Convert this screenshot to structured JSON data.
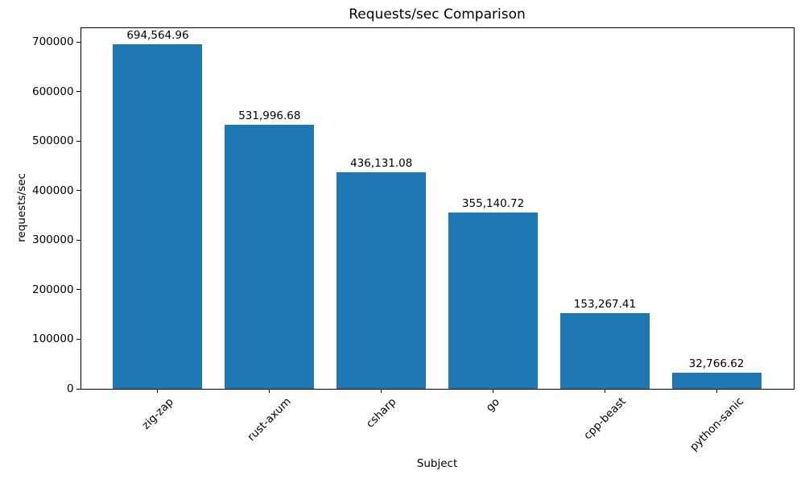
{
  "chart_data": {
    "type": "bar",
    "title": "Requests/sec Comparison",
    "xlabel": "Subject",
    "ylabel": "requests/sec",
    "categories": [
      "zig-zap",
      "rust-axum",
      "csharp",
      "go",
      "cpp-beast",
      "python-sanic"
    ],
    "values": [
      694564.96,
      531996.68,
      436131.08,
      355140.72,
      153267.41,
      32766.62
    ],
    "value_labels": [
      "694,564.96",
      "531,996.68",
      "436,131.08",
      "355,140.72",
      "153,267.41",
      "32,766.62"
    ],
    "yticks": [
      0,
      100000,
      200000,
      300000,
      400000,
      500000,
      600000,
      700000
    ],
    "ylim": [
      0,
      729293
    ],
    "xlim": [
      -0.69,
      5.69
    ],
    "bar_width_units": 0.8,
    "bar_color": "#1f77b4",
    "axis_color": "#000000",
    "background": "#ffffff",
    "grid": false,
    "legend": false,
    "x_tick_rotation_deg": 45
  }
}
